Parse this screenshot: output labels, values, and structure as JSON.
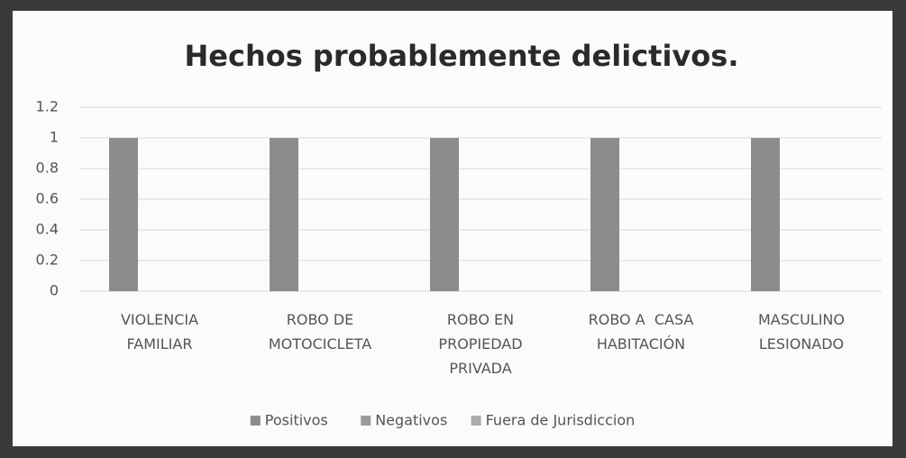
{
  "chart_data": {
    "type": "bar",
    "title": "Hechos probablemente delictivos.",
    "categories": [
      "VIOLENCIA FAMILIAR",
      "ROBO DE MOTOCICLETA",
      "ROBO EN PROPIEDAD PRIVADA",
      "ROBO A  CASA HABITACIÓN",
      "MASCULINO LESIONADO"
    ],
    "series": [
      {
        "name": "Positivos",
        "color": "#8c8c8c",
        "values": [
          1,
          1,
          1,
          1,
          1
        ]
      },
      {
        "name": "Negativos",
        "color": "#9a9a9a",
        "values": [
          0,
          0,
          0,
          0,
          0
        ]
      },
      {
        "name": "Fuera de Jurisdiccion",
        "color": "#ababab",
        "values": [
          0,
          0,
          0,
          0,
          0
        ]
      }
    ],
    "ylim": [
      0,
      1.2
    ],
    "yticks": [
      0,
      0.2,
      0.4,
      0.6,
      0.8,
      1,
      1.2
    ],
    "grid": true,
    "legend": "bottom"
  }
}
